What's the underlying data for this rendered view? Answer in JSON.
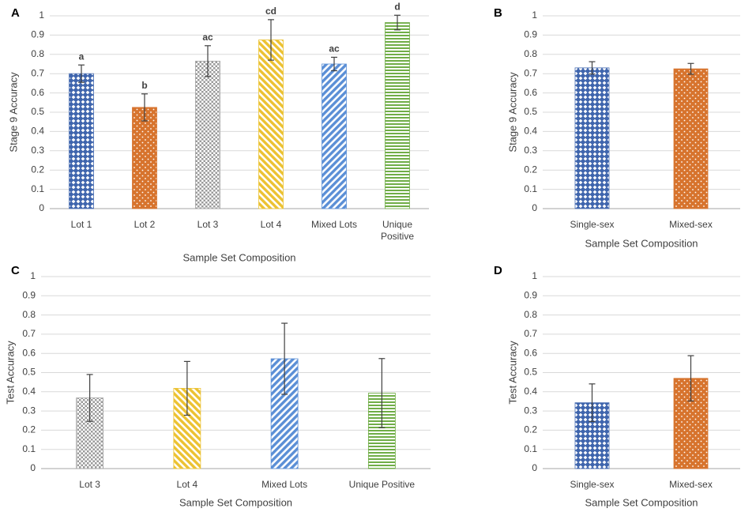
{
  "colors": {
    "blue": "#4a6fb3",
    "orange": "#d7742e",
    "gray": "#a3a3a3",
    "yellow": "#ecc232",
    "lightblue": "#5b8fd6",
    "green": "#70ad47",
    "grid": "#d9d9d9",
    "axis": "#a6a6a6",
    "text": "#404040"
  },
  "chart_data": [
    {
      "panel": "A",
      "type": "bar",
      "ylabel": "Stage 9 Accuracy",
      "xlabel": "Sample Set Composition",
      "ylim": [
        0,
        1
      ],
      "yticks": [
        "0",
        "0.1",
        "0.2",
        "0.3",
        "0.4",
        "0.5",
        "0.6",
        "0.7",
        "0.8",
        "0.9",
        "1"
      ],
      "categories": [
        [
          "Lot 1"
        ],
        [
          "Lot 2"
        ],
        [
          "Lot 3"
        ],
        [
          "Lot 4"
        ],
        [
          "Mixed Lots"
        ],
        [
          "Unique",
          "Positive"
        ]
      ],
      "values": [
        0.7,
        0.525,
        0.765,
        0.875,
        0.75,
        0.965
      ],
      "errors": [
        0.045,
        0.07,
        0.08,
        0.105,
        0.035,
        0.038
      ],
      "sig_labels": [
        "a",
        "b",
        "ac",
        "cd",
        "ac",
        "d"
      ],
      "patterns": [
        "blue",
        "orange",
        "gray",
        "yellow",
        "lightblue",
        "green"
      ]
    },
    {
      "panel": "B",
      "type": "bar",
      "ylabel": "Stage 9 Accuracy",
      "xlabel": "Sample Set Composition",
      "ylim": [
        0,
        1
      ],
      "yticks": [
        "0",
        "0.1",
        "0.2",
        "0.3",
        "0.4",
        "0.5",
        "0.6",
        "0.7",
        "0.8",
        "0.9",
        "1"
      ],
      "categories": [
        [
          "Single-sex"
        ],
        [
          "Mixed-sex"
        ]
      ],
      "values": [
        0.73,
        0.725
      ],
      "errors": [
        0.032,
        0.028
      ],
      "sig_labels": [
        "",
        ""
      ],
      "patterns": [
        "blue",
        "orange"
      ]
    },
    {
      "panel": "C",
      "type": "bar",
      "ylabel": "Test Accuracy",
      "xlabel": "Sample Set Composition",
      "ylim": [
        0,
        1
      ],
      "yticks": [
        "0",
        "0.1",
        "0.2",
        "0.3",
        "0.4",
        "0.5",
        "0.6",
        "0.7",
        "0.8",
        "0.9",
        "1"
      ],
      "categories": [
        [
          "Lot 3"
        ],
        [
          "Lot 4"
        ],
        [
          "Mixed Lots"
        ],
        [
          "Unique Positive"
        ]
      ],
      "values": [
        0.368,
        0.418,
        0.572,
        0.393
      ],
      "errors": [
        0.122,
        0.14,
        0.185,
        0.18
      ],
      "sig_labels": [
        "",
        "",
        "",
        ""
      ],
      "patterns": [
        "gray",
        "yellow",
        "lightblue",
        "green"
      ]
    },
    {
      "panel": "D",
      "type": "bar",
      "ylabel": "Test Accuracy",
      "xlabel": "Sample Set Composition",
      "ylim": [
        0,
        1
      ],
      "yticks": [
        "0",
        "0.1",
        "0.2",
        "0.3",
        "0.4",
        "0.5",
        "0.6",
        "0.7",
        "0.8",
        "0.9",
        "1"
      ],
      "categories": [
        [
          "Single-sex"
        ],
        [
          "Mixed-sex"
        ]
      ],
      "values": [
        0.343,
        0.47
      ],
      "errors": [
        0.098,
        0.118
      ],
      "sig_labels": [
        "",
        ""
      ],
      "patterns": [
        "blue",
        "orange"
      ]
    }
  ]
}
